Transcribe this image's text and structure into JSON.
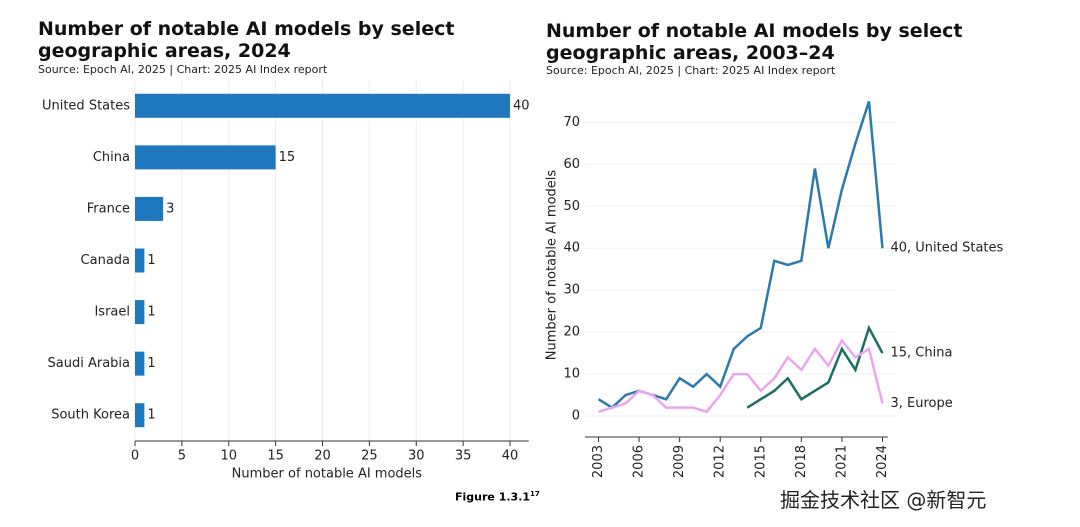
{
  "chart_data": [
    {
      "type": "hbar",
      "title": "Number of notable AI models by select geographic areas, 2024",
      "subtitle": "Source: Epoch AI, 2025 | Chart: 2025 AI Index report",
      "x_label": "Number of notable AI models",
      "categories": [
        "United States",
        "China",
        "France",
        "Canada",
        "Israel",
        "Saudi Arabia",
        "South Korea"
      ],
      "values": [
        40,
        15,
        3,
        1,
        1,
        1,
        1
      ],
      "color": "#1f77be",
      "xlim": [
        0,
        42
      ],
      "xticks": [
        0,
        5,
        10,
        15,
        20,
        25,
        30,
        35,
        40
      ],
      "grid": true
    },
    {
      "type": "line",
      "title": "Number of notable AI models by select geographic areas, 2003–24",
      "subtitle": "Source: Epoch AI, 2025 | Chart: 2025 AI Index report",
      "y_label": "Number of notable AI models",
      "x": [
        2003,
        2004,
        2005,
        2006,
        2007,
        2008,
        2009,
        2010,
        2011,
        2012,
        2013,
        2014,
        2015,
        2016,
        2017,
        2018,
        2019,
        2020,
        2021,
        2022,
        2023,
        2024
      ],
      "series": [
        {
          "name": "United States",
          "end_label": "40, United States",
          "color": "#2a7ab0",
          "values": [
            4,
            2,
            5,
            6,
            5,
            4,
            9,
            7,
            10,
            7,
            16,
            19,
            21,
            37,
            36,
            37,
            59,
            40,
            54,
            65,
            75,
            40
          ]
        },
        {
          "name": "China",
          "end_label": "15, China",
          "color": "#1a6e64",
          "values": [
            null,
            null,
            null,
            null,
            null,
            null,
            null,
            null,
            null,
            null,
            null,
            2,
            4,
            6,
            9,
            4,
            6,
            8,
            16,
            11,
            21,
            15
          ]
        },
        {
          "name": "Europe",
          "end_label": "3, Europe",
          "color": "#e9a6ef",
          "values": [
            1,
            2,
            3,
            6,
            5,
            2,
            2,
            2,
            1,
            5,
            10,
            10,
            6,
            9,
            14,
            11,
            16,
            12,
            18,
            14,
            16,
            3
          ]
        }
      ],
      "xlim": [
        2002,
        2025
      ],
      "xticks": [
        2003,
        2006,
        2009,
        2012,
        2015,
        2018,
        2021,
        2024
      ],
      "ylim": [
        -5,
        77
      ],
      "yticks": [
        0,
        10,
        20,
        30,
        40,
        50,
        60,
        70
      ],
      "grid": true
    }
  ],
  "figure_label": "Figure 1.3.1",
  "figure_footnote": "17",
  "watermark": "掘金技术社区 @新智元"
}
